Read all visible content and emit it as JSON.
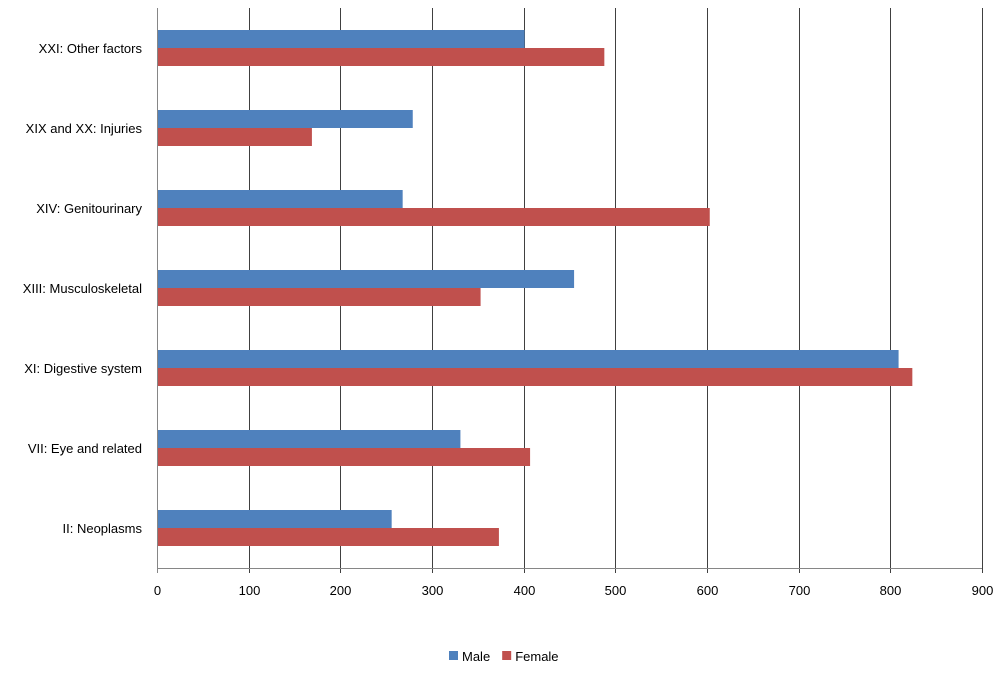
{
  "chart_data": {
    "type": "bar",
    "orientation": "horizontal",
    "title": "",
    "xlabel": "",
    "ylabel": "",
    "xlim": [
      0,
      900
    ],
    "x_ticks": [
      "0",
      "100",
      "200",
      "300",
      "400",
      "500",
      "600",
      "700",
      "800",
      "900"
    ],
    "grid": "vertical gridlines on",
    "legend_position": "bottom",
    "categories": [
      "XXI: Other factors",
      "XIX and XX: Injuries",
      "XIV: Genitourinary",
      "XIII: Musculoskeletal",
      "XI: Digestive system",
      "VII: Eye and related",
      "II: Neoplasms"
    ],
    "series": [
      {
        "name": "Male",
        "color": "#4F81BD",
        "values": [
          401,
          279,
          268,
          455,
          809,
          331,
          256
        ]
      },
      {
        "name": "Female",
        "color": "#C0504D",
        "values": [
          488,
          169,
          603,
          353,
          824,
          407,
          373
        ]
      }
    ]
  }
}
